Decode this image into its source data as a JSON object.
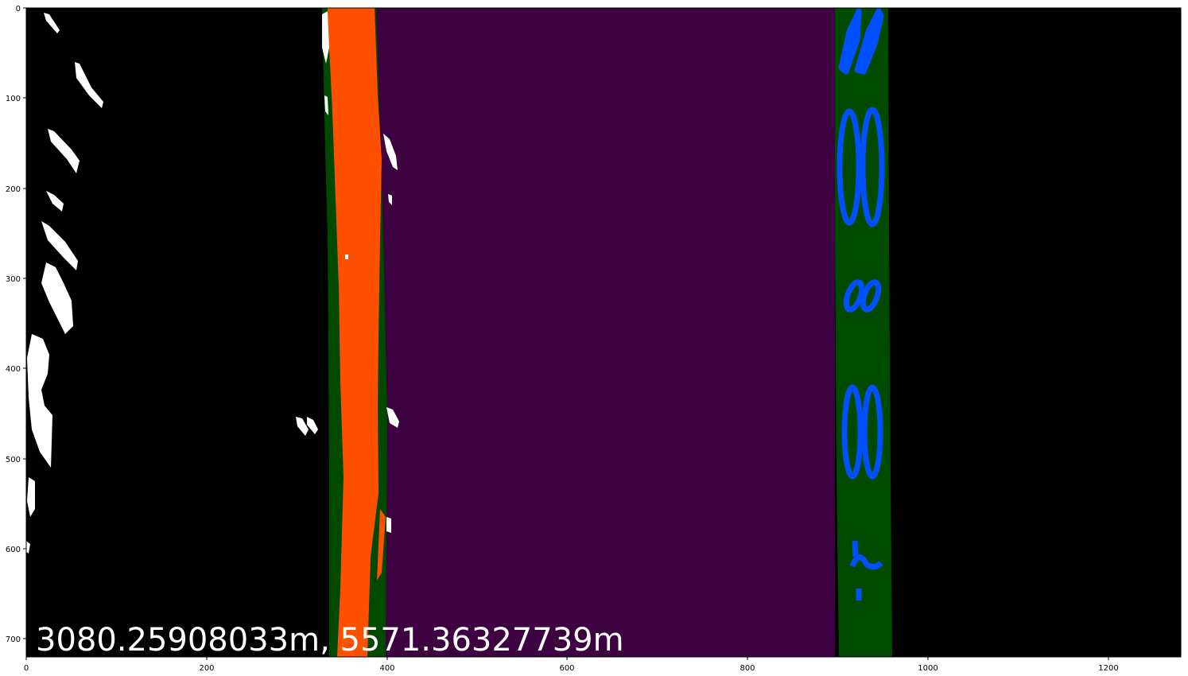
{
  "image": {
    "description_note": "",
    "overlay_text": "3080.25908033m, 5571.36327739m",
    "colors": {
      "background": "#000000",
      "lane_fill": "#3d0040",
      "lane_window": "#004a00",
      "left_lane_pixels": "#ff5000",
      "right_lane_pixels": "#0050ff",
      "noise": "#ffffff"
    }
  },
  "axes": {
    "x_ticks": [
      "0",
      "200",
      "400",
      "600",
      "800",
      "1000",
      "1200"
    ],
    "y_ticks": [
      "0",
      "100",
      "200",
      "300",
      "400",
      "500",
      "600",
      "700"
    ]
  }
}
